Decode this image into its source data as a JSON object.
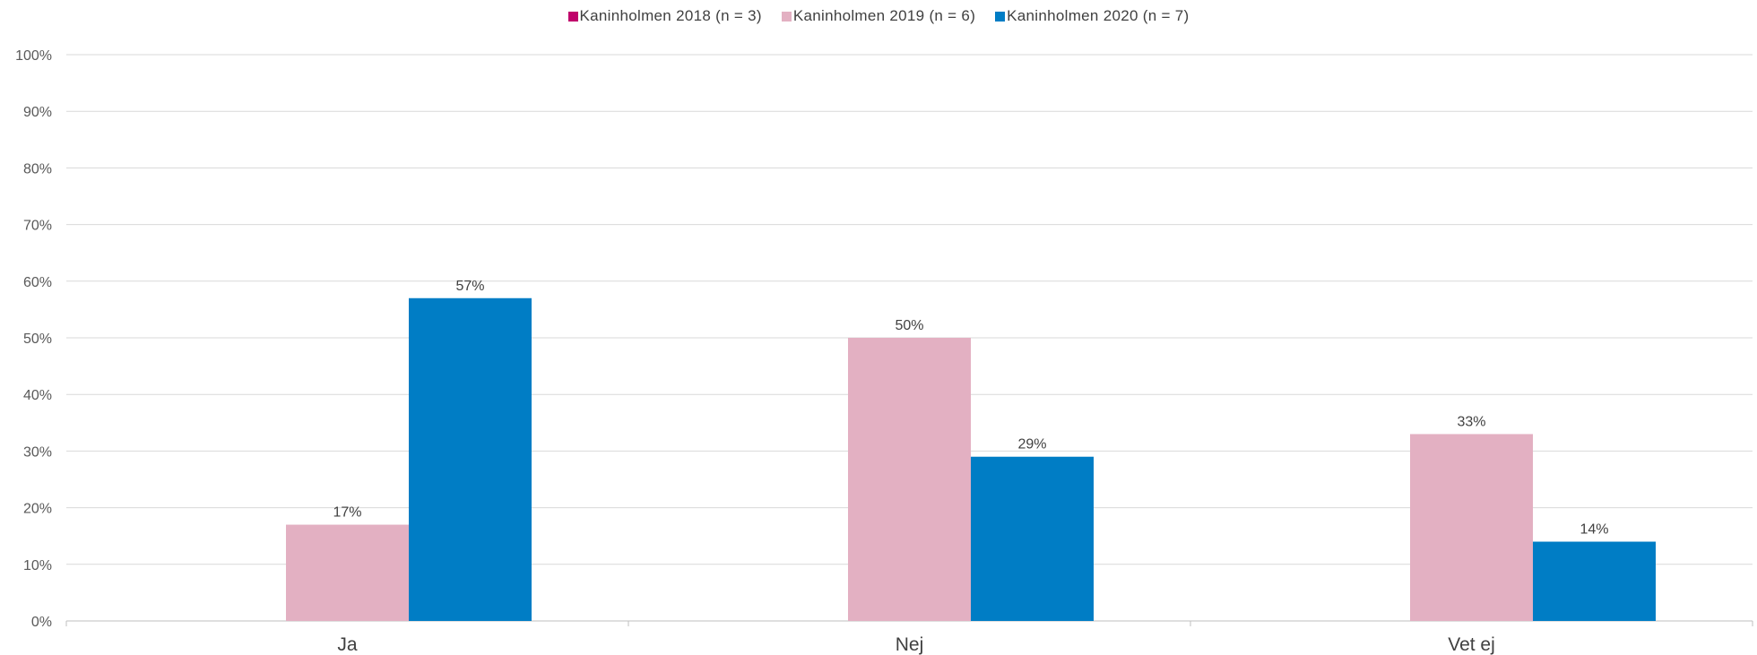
{
  "chart_data": {
    "type": "bar",
    "title": "",
    "xlabel": "",
    "ylabel": "",
    "categories": [
      "Ja",
      "Nej",
      "Vet ej"
    ],
    "series": [
      {
        "name": "Kaninholmen 2018 (n = 3)",
        "color": "#c0006b",
        "values": [
          null,
          null,
          null
        ],
        "labels": [
          "",
          "",
          ""
        ]
      },
      {
        "name": "Kaninholmen 2019 (n = 6)",
        "color": "#e3b0c2",
        "values": [
          17,
          50,
          33
        ],
        "labels": [
          "17%",
          "50%",
          "33%"
        ]
      },
      {
        "name": "Kaninholmen 2020 (n = 7)",
        "color": "#007dc5",
        "values": [
          57,
          29,
          14
        ],
        "labels": [
          "57%",
          "29%",
          "14%"
        ]
      }
    ],
    "ylim": [
      0,
      100
    ],
    "yticks": [
      0,
      10,
      20,
      30,
      40,
      50,
      60,
      70,
      80,
      90,
      100
    ],
    "ytick_labels": [
      "0%",
      "10%",
      "20%",
      "30%",
      "40%",
      "50%",
      "60%",
      "70%",
      "80%",
      "90%",
      "100%"
    ],
    "grid": true,
    "legend_position": "top-center"
  }
}
